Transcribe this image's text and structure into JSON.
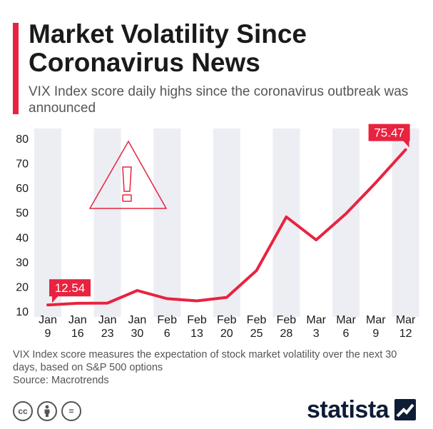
{
  "header": {
    "title": "Market Volatility Since Coronavirus News",
    "subtitle": "VIX Index score daily highs since the coronavirus outbreak was announced"
  },
  "chart_data": {
    "type": "line",
    "title": "Market Volatility Since Coronavirus News",
    "subtitle": "VIX Index score daily highs since the coronavirus outbreak was announced",
    "xlabel": "",
    "ylabel": "",
    "categories": [
      [
        "Jan",
        "9"
      ],
      [
        "Jan",
        "16"
      ],
      [
        "Jan",
        "23"
      ],
      [
        "Jan",
        "30"
      ],
      [
        "Feb",
        "6"
      ],
      [
        "Feb",
        "13"
      ],
      [
        "Feb",
        "20"
      ],
      [
        "Feb",
        "25"
      ],
      [
        "Feb",
        "28"
      ],
      [
        "Mar",
        "3"
      ],
      [
        "Mar",
        "6"
      ],
      [
        "Mar",
        "9"
      ],
      [
        "Mar",
        "12"
      ]
    ],
    "values": [
      12.54,
      13.2,
      13.3,
      18.4,
      15.1,
      14.2,
      15.6,
      26.5,
      48.2,
      38.9,
      49.5,
      62.1,
      75.47
    ],
    "ylim": [
      10,
      80
    ],
    "yticks": [
      10,
      20,
      30,
      40,
      50,
      60,
      70,
      80
    ],
    "grid": false,
    "labeled_points": [
      {
        "index": 0,
        "text": "12.54"
      },
      {
        "index": 12,
        "text": "75.47"
      }
    ],
    "colors": {
      "line": "#e8233f",
      "band": "#eceef4",
      "warning": "#e8233f"
    },
    "annotation_icon": "warning-triangle-icon"
  },
  "footer": {
    "note": "VIX Index score measures the expectation of stock market volatility over the next 30 days, based on S&P 500 options",
    "source": "Source: Macrotrends"
  },
  "license_icons": [
    "cc-icon",
    "attribution-icon",
    "no-derivatives-icon"
  ],
  "license_glyphs": {
    "cc": "cc",
    "nd": "="
  },
  "brand": {
    "name": "statista",
    "icon": "statista-logo-icon"
  }
}
